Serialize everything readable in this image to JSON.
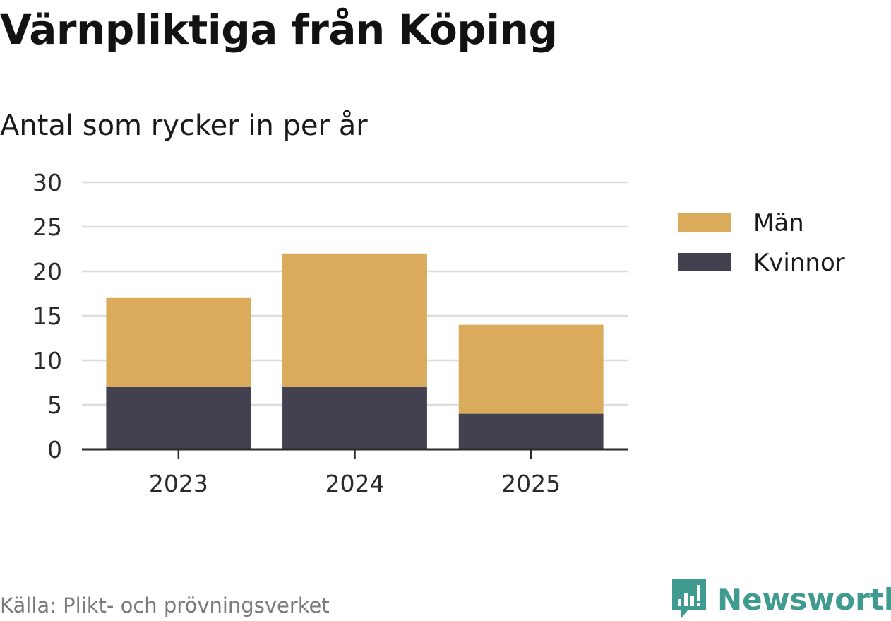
{
  "title": "Värnpliktiga från Köping",
  "subtitle": "Antal som rycker in per år",
  "source": "Källa: Plikt- och prövningsverket",
  "brand": {
    "name": "Newsworthy",
    "icon": "bar-chart-logo-icon",
    "color": "#3f9a8f"
  },
  "chart_data": {
    "type": "bar",
    "stacked": true,
    "categories": [
      "2023",
      "2024",
      "2025"
    ],
    "series": [
      {
        "name": "Kvinnor",
        "color": "#43404f",
        "values": [
          7,
          7,
          4
        ]
      },
      {
        "name": "Män",
        "color": "#d9ab5b",
        "values": [
          10,
          15,
          10
        ]
      }
    ],
    "legend": [
      {
        "name": "Män",
        "color": "#d9ab5b"
      },
      {
        "name": "Kvinnor",
        "color": "#43404f"
      }
    ],
    "ylim": [
      0,
      30
    ],
    "yticks": [
      "0",
      "5",
      "10",
      "15",
      "20",
      "25",
      "30"
    ],
    "grid": true,
    "legend_position": "right"
  }
}
